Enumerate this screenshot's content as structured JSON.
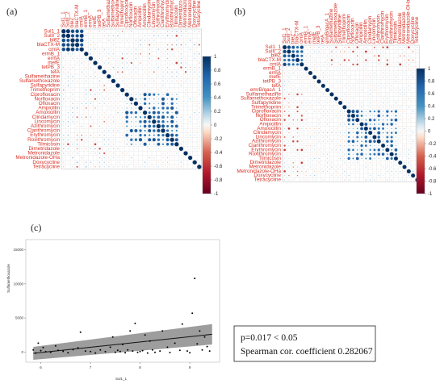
{
  "panels": {
    "a": "(a)",
    "b": "(b)",
    "c": "(c)"
  },
  "labels": [
    "Sul1_1",
    "SulII_2",
    "bleZ",
    "blaCTX-M",
    "cmlA",
    "ermB_1",
    "ermA",
    "mefE",
    "tetPB_3",
    "tetA",
    "emrB/qacA_1",
    "Sulfamethazine",
    "Sulfamethoxazole",
    "Sulfapyridine",
    "Trimethoprim",
    "Ciprofloxacin",
    "Norfloxacin",
    "Ofloxacin",
    "Ampicillin",
    "Amoxicillin",
    "Clindamycin",
    "Lincomycin",
    "Azithromycin",
    "Clarithromycin",
    "Erythromycin",
    "Roxithromycin",
    "Tilmicosin",
    "Dimetridazole",
    "Metronidazole",
    "Metronidazole-OHa",
    "Doxycycline",
    "Tetracycline"
  ],
  "labels_a": [
    "Sul1_1",
    "SulII_2",
    "bleZ",
    "blaCTX-M",
    "cmlA",
    "ermB_1",
    "ermA",
    "mefE",
    "tetPB_3",
    "tetA",
    "Sulfamethazine",
    "Sulfamethoxazole",
    "Sulfapyridine",
    "Trimethoprim",
    "Ciprofloxacin",
    "Norfloxacin",
    "Ofloxacin",
    "Ampicillin",
    "Amoxicillin",
    "Clindamycin",
    "Lincomycin",
    "Azithromycin",
    "Clarithromycin",
    "Erythromycin",
    "Roxithromycin",
    "Tilmicosin",
    "Dimetridazole",
    "Metronidazole",
    "Metronidazole-OHa",
    "Doxycycline",
    "Tetracycline"
  ],
  "colorbar": {
    "ticks": [
      "1",
      "0.8",
      "0.6",
      "0.4",
      "0.2",
      "0",
      "-0.2",
      "-0.4",
      "-0.6",
      "-0.8",
      "-1"
    ],
    "pos_color": "#053061",
    "neg_color": "#67001f"
  },
  "scatter": {
    "xlabel": "Sul1_1",
    "ylabel": "Sulfamethoxazole",
    "p_text": "p=0.017 < 0.05",
    "coef_text": "Spearman cor. coefficient 0.282067"
  },
  "chart_data": [
    {
      "type": "heatmap",
      "title": "(a)",
      "variables": "labels_a",
      "value_range": [
        -1,
        1
      ]
    },
    {
      "type": "heatmap",
      "title": "(b)",
      "variables": "labels",
      "value_range": [
        -1,
        1
      ]
    },
    {
      "type": "scatter",
      "title": "(c)",
      "xlabel": "Sul1_1",
      "ylabel": "Sulfamethoxazole",
      "xlim": [
        5.7,
        9.6
      ],
      "ylim": [
        -1500,
        16500
      ],
      "xticks": [
        6,
        7,
        8,
        9
      ],
      "yticks": [
        0,
        5000,
        10000,
        15000
      ],
      "points": [
        [
          5.85,
          300
        ],
        [
          5.9,
          -150
        ],
        [
          5.95,
          1300
        ],
        [
          6.0,
          200
        ],
        [
          6.05,
          650
        ],
        [
          6.1,
          50
        ],
        [
          6.2,
          -50
        ],
        [
          6.3,
          900
        ],
        [
          6.35,
          250
        ],
        [
          6.45,
          100
        ],
        [
          6.55,
          -100
        ],
        [
          6.65,
          350
        ],
        [
          6.75,
          600
        ],
        [
          6.8,
          2900
        ],
        [
          6.9,
          150
        ],
        [
          7.0,
          80
        ],
        [
          7.1,
          -150
        ],
        [
          7.2,
          300
        ],
        [
          7.3,
          50
        ],
        [
          7.4,
          700
        ],
        [
          7.45,
          2200
        ],
        [
          7.5,
          -50
        ],
        [
          7.55,
          250
        ],
        [
          7.6,
          80
        ],
        [
          7.65,
          1100
        ],
        [
          7.7,
          -100
        ],
        [
          7.75,
          300
        ],
        [
          7.8,
          3100
        ],
        [
          7.85,
          150
        ],
        [
          7.9,
          4200
        ],
        [
          7.95,
          -50
        ],
        [
          8.0,
          80
        ],
        [
          8.05,
          200
        ],
        [
          8.1,
          2500
        ],
        [
          8.15,
          -150
        ],
        [
          8.2,
          1600
        ],
        [
          8.25,
          300
        ],
        [
          8.3,
          -50
        ],
        [
          8.4,
          150
        ],
        [
          8.45,
          3100
        ],
        [
          8.55,
          700
        ],
        [
          8.6,
          -80
        ],
        [
          8.7,
          1300
        ],
        [
          8.8,
          250
        ],
        [
          8.85,
          4100
        ],
        [
          8.95,
          150
        ],
        [
          9.0,
          -100
        ],
        [
          9.05,
          5700
        ],
        [
          9.1,
          10800
        ],
        [
          9.15,
          1200
        ],
        [
          9.2,
          3100
        ],
        [
          9.25,
          300
        ],
        [
          9.3,
          2200
        ],
        [
          9.35,
          800
        ],
        [
          9.4,
          150
        ]
      ],
      "fit": {
        "x": [
          5.85,
          9.45
        ],
        "y": [
          -200,
          2600
        ],
        "ci_start": [
          -1150,
          750
        ],
        "ci_end": [
          1100,
          4100
        ]
      },
      "annotations": [
        "p=0.017 < 0.05",
        "Spearman cor. coefficient 0.282067"
      ]
    }
  ]
}
